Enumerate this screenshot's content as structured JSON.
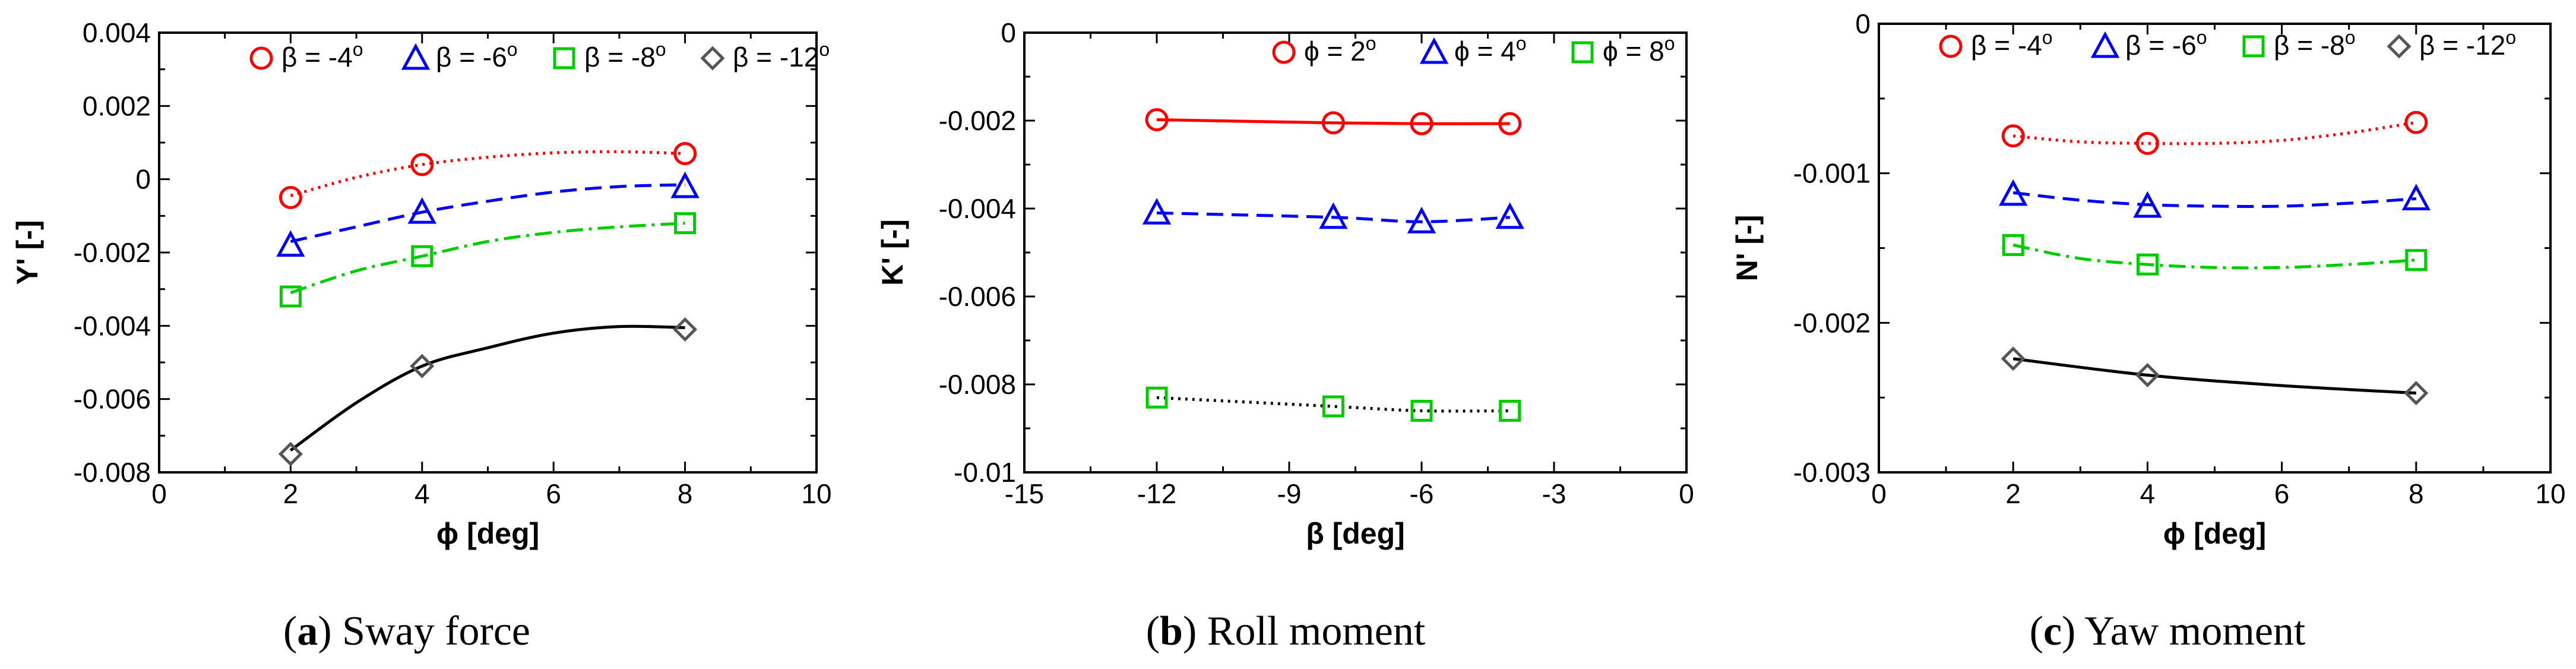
{
  "panels": [
    {
      "caption_letter": "a",
      "caption_title": "Sway force",
      "chart_data": {
        "type": "line",
        "xlabel": "ϕ [deg]",
        "ylabel": "Y' [-]",
        "xlim": [
          0,
          10
        ],
        "ylim": [
          -0.008,
          0.004
        ],
        "xticks": [
          0,
          2,
          4,
          6,
          8,
          10
        ],
        "yticks": [
          -0.008,
          -0.006,
          -0.004,
          -0.002,
          0,
          0.002,
          0.004
        ],
        "xtick_labels": [
          "0",
          "2",
          "4",
          "6",
          "8",
          "10"
        ],
        "ytick_labels": [
          "-0.008",
          "-0.006",
          "-0.004",
          "-0.002",
          "0",
          "0.002",
          "0.004"
        ],
        "grid": false,
        "legend_position": "top",
        "series": [
          {
            "name": "β = -4",
            "marker": "circle",
            "line": "dotted",
            "color": "#ff0000",
            "x": [
              2,
              4,
              8
            ],
            "y": [
              -0.0005,
              0.0004,
              0.0007
            ],
            "fit_curve": [
              [
                2,
                -0.00045
              ],
              [
                3,
                5e-05
              ],
              [
                4,
                0.0004
              ],
              [
                5,
                0.0006
              ],
              [
                6,
                0.00072
              ],
              [
                7,
                0.00075
              ],
              [
                8,
                0.0007
              ]
            ]
          },
          {
            "name": "β = -6",
            "marker": "triangle",
            "line": "dashed",
            "color": "#0000ff",
            "x": [
              2,
              4,
              8
            ],
            "y": [
              -0.0018,
              -0.0009,
              -0.0002
            ],
            "fit_curve": [
              [
                2,
                -0.0017
              ],
              [
                3,
                -0.0013
              ],
              [
                4,
                -0.0009
              ],
              [
                5,
                -0.0006
              ],
              [
                6,
                -0.00035
              ],
              [
                7,
                -0.0002
              ],
              [
                8,
                -0.00015
              ]
            ]
          },
          {
            "name": "β = -8",
            "marker": "square",
            "line": "dashdot",
            "color": "#00cc00",
            "x": [
              2,
              4,
              8
            ],
            "y": [
              -0.0032,
              -0.0021,
              -0.0012
            ],
            "fit_curve": [
              [
                2,
                -0.0031
              ],
              [
                3,
                -0.0025
              ],
              [
                4,
                -0.0021
              ],
              [
                5,
                -0.0017
              ],
              [
                6,
                -0.00145
              ],
              [
                7,
                -0.0013
              ],
              [
                8,
                -0.0012
              ]
            ]
          },
          {
            "name": "β = -12",
            "marker": "diamond",
            "line": "solid",
            "color": "#000000",
            "marker_color": "#555555",
            "x": [
              2,
              4,
              8
            ],
            "y": [
              -0.0075,
              -0.0051,
              -0.0041
            ],
            "fit_curve": [
              [
                2,
                -0.0074
              ],
              [
                3,
                -0.0061
              ],
              [
                4,
                -0.0051
              ],
              [
                5,
                -0.0046
              ],
              [
                6,
                -0.0042
              ],
              [
                7,
                -0.00402
              ],
              [
                8,
                -0.00405
              ]
            ]
          }
        ]
      }
    },
    {
      "caption_letter": "b",
      "caption_title": "Roll moment",
      "chart_data": {
        "type": "line",
        "xlabel": "β [deg]",
        "ylabel": "K' [-]",
        "xlim": [
          -15,
          0
        ],
        "ylim": [
          -0.01,
          0
        ],
        "xticks": [
          -15,
          -12,
          -9,
          -6,
          -3,
          0
        ],
        "yticks": [
          -0.01,
          -0.008,
          -0.006,
          -0.004,
          -0.002,
          0
        ],
        "xtick_labels": [
          "-15",
          "-12",
          "-9",
          "-6",
          "-3",
          "0"
        ],
        "ytick_labels": [
          "-0.01",
          "-0.008",
          "-0.006",
          "-0.004",
          "-0.002",
          "0"
        ],
        "grid": false,
        "legend_position": "top",
        "series": [
          {
            "name": "ϕ = 2",
            "marker": "circle",
            "line": "solid",
            "color": "#ff0000",
            "x": [
              -12,
              -8,
              -6,
              -4
            ],
            "y": [
              -0.00198,
              -0.00205,
              -0.00207,
              -0.00207
            ]
          },
          {
            "name": "ϕ = 4",
            "marker": "triangle",
            "line": "dashed",
            "color": "#0000ff",
            "x": [
              -12,
              -8,
              -6,
              -4
            ],
            "y": [
              -0.0041,
              -0.0042,
              -0.0043,
              -0.0042
            ]
          },
          {
            "name": "ϕ = 8",
            "marker": "square",
            "line": "dotted",
            "color": "#00cc00",
            "line_color": "#000000",
            "x": [
              -12,
              -8,
              -6,
              -4
            ],
            "y": [
              -0.0083,
              -0.0085,
              -0.0086,
              -0.0086
            ]
          }
        ]
      }
    },
    {
      "caption_letter": "c",
      "caption_title": "Yaw moment",
      "chart_data": {
        "type": "line",
        "xlabel": "ϕ [deg]",
        "ylabel": "N' [-]",
        "xlim": [
          0,
          10
        ],
        "ylim": [
          -0.003,
          0
        ],
        "xticks": [
          0,
          2,
          4,
          6,
          8,
          10
        ],
        "yticks": [
          -0.003,
          -0.002,
          -0.001,
          0
        ],
        "xtick_labels": [
          "0",
          "2",
          "4",
          "6",
          "8",
          "10"
        ],
        "ytick_labels": [
          "-0.003",
          "-0.002",
          "-0.001",
          "0"
        ],
        "grid": false,
        "legend_position": "top",
        "series": [
          {
            "name": "β = -4",
            "marker": "circle",
            "line": "dotted",
            "color": "#ff0000",
            "x": [
              2,
              4,
              8
            ],
            "y": [
              -0.00075,
              -0.0008,
              -0.00066
            ],
            "fit_curve": [
              [
                2,
                -0.00075
              ],
              [
                3,
                -0.00079
              ],
              [
                4,
                -0.0008
              ],
              [
                5,
                -0.0008
              ],
              [
                6,
                -0.00078
              ],
              [
                7,
                -0.00073
              ],
              [
                8,
                -0.00066
              ]
            ]
          },
          {
            "name": "β = -6",
            "marker": "triangle",
            "line": "dashed",
            "color": "#0000ff",
            "x": [
              2,
              4,
              8
            ],
            "y": [
              -0.00114,
              -0.00122,
              -0.00117
            ],
            "fit_curve": [
              [
                2,
                -0.00113
              ],
              [
                3,
                -0.00118
              ],
              [
                4,
                -0.00121
              ],
              [
                5,
                -0.00122
              ],
              [
                6,
                -0.00122
              ],
              [
                7,
                -0.0012
              ],
              [
                8,
                -0.00117
              ]
            ]
          },
          {
            "name": "β = -8",
            "marker": "square",
            "line": "dashdot",
            "color": "#00cc00",
            "x": [
              2,
              4,
              8
            ],
            "y": [
              -0.00148,
              -0.00161,
              -0.00158
            ],
            "fit_curve": [
              [
                2,
                -0.00148
              ],
              [
                3,
                -0.00157
              ],
              [
                4,
                -0.00161
              ],
              [
                5,
                -0.00163
              ],
              [
                6,
                -0.00163
              ],
              [
                7,
                -0.00161
              ],
              [
                8,
                -0.00158
              ]
            ]
          },
          {
            "name": "β = -12",
            "marker": "diamond",
            "line": "solid",
            "color": "#000000",
            "marker_color": "#555555",
            "x": [
              2,
              4,
              8
            ],
            "y": [
              -0.00224,
              -0.00235,
              -0.00247
            ],
            "fit_curve": [
              [
                2,
                -0.00224
              ],
              [
                4,
                -0.00235
              ],
              [
                6,
                -0.00242
              ],
              [
                8,
                -0.00247
              ]
            ]
          }
        ]
      }
    }
  ],
  "legend_degree_symbol": "o"
}
